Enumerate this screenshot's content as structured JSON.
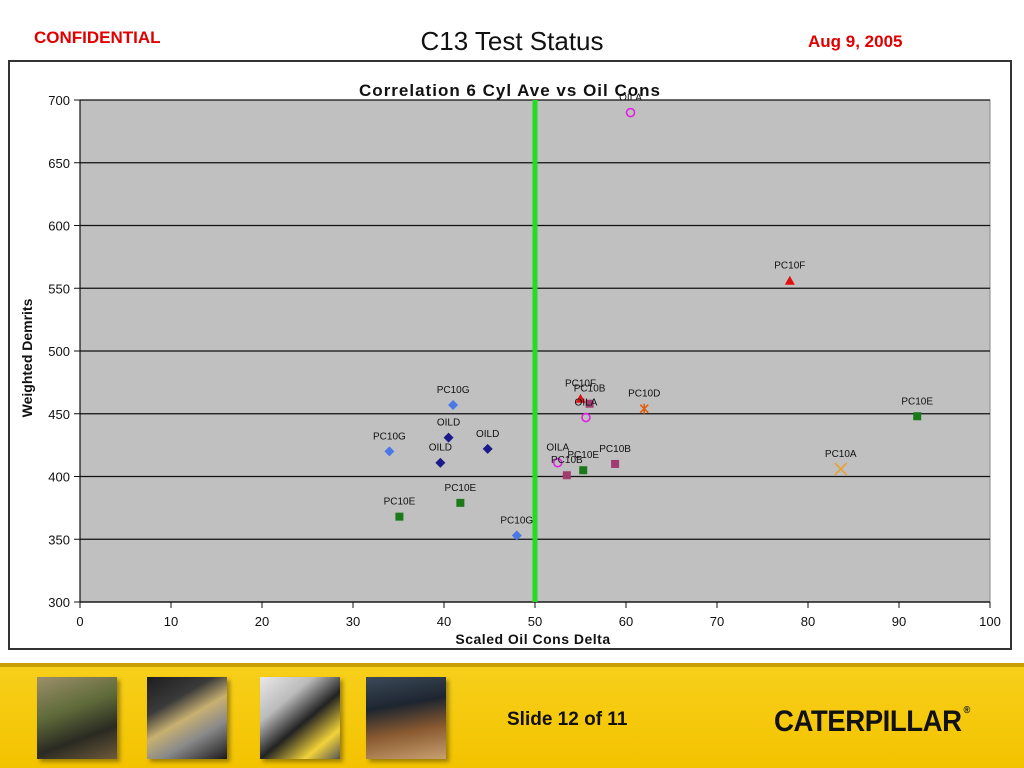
{
  "header": {
    "confidential": "CONFIDENTIAL",
    "title": "C13 Test Status",
    "date": "Aug 9, 2005"
  },
  "footer": {
    "slide_label": "Slide 12 of 11",
    "logo_text": "CATERPILLAR",
    "logo_mark": "®"
  },
  "chart_data": {
    "type": "scatter",
    "title": "Correlation 6 Cyl Ave vs Oil Cons",
    "xlabel": "Scaled  Oil Cons Delta",
    "ylabel": "Weighted Demrits",
    "xlim": [
      0,
      100
    ],
    "ylim": [
      300,
      700
    ],
    "xticks": [
      0,
      10,
      20,
      30,
      40,
      50,
      60,
      70,
      80,
      90,
      100
    ],
    "yticks": [
      300,
      350,
      400,
      450,
      500,
      550,
      600,
      650,
      700
    ],
    "grid": "horizontal",
    "plot_background": "#c0c0c0",
    "reference_line": {
      "x": 50,
      "color": "#22dd22"
    },
    "points": [
      {
        "label": "OILA",
        "x": 60.5,
        "y": 690,
        "marker": "circle",
        "color": "#e020e0"
      },
      {
        "label": "PC10F",
        "x": 78,
        "y": 556,
        "marker": "triangle",
        "color": "#e01010"
      },
      {
        "label": "PC10G",
        "x": 41,
        "y": 457,
        "marker": "diamond",
        "color": "#4a78e8"
      },
      {
        "label": "PC10G",
        "x": 34,
        "y": 420,
        "marker": "diamond",
        "color": "#4a78e8"
      },
      {
        "label": "PC10G",
        "x": 48,
        "y": 353,
        "marker": "diamond",
        "color": "#4a78e8"
      },
      {
        "label": "OILD",
        "x": 40.5,
        "y": 431,
        "marker": "diamond",
        "color": "#1a1a8a"
      },
      {
        "label": "OILD",
        "x": 44.8,
        "y": 422,
        "marker": "diamond",
        "color": "#1a1a8a"
      },
      {
        "label": "OILD",
        "x": 39.6,
        "y": 411,
        "marker": "diamond",
        "color": "#1a1a8a"
      },
      {
        "label": "PC10F",
        "x": 55,
        "y": 462,
        "marker": "triangle",
        "color": "#e01010"
      },
      {
        "label": "PC10B",
        "x": 56,
        "y": 458,
        "marker": "square",
        "color": "#a03c70"
      },
      {
        "label": "OILA",
        "x": 55.6,
        "y": 447,
        "marker": "circle",
        "color": "#e020e0"
      },
      {
        "label": "PC10D",
        "x": 62,
        "y": 454,
        "marker": "star",
        "color": "#e06010"
      },
      {
        "label": "PC10E",
        "x": 92,
        "y": 448,
        "marker": "square",
        "color": "#1a7a1a"
      },
      {
        "label": "PC10A",
        "x": 83.6,
        "y": 406,
        "marker": "x",
        "color": "#e8a030"
      },
      {
        "label": "OILA",
        "x": 52.5,
        "y": 411,
        "marker": "circle",
        "color": "#e020e0"
      },
      {
        "label": "PC10B",
        "x": 53.5,
        "y": 401,
        "marker": "square",
        "color": "#a03c70"
      },
      {
        "label": "PC10E",
        "x": 55.3,
        "y": 405,
        "marker": "square",
        "color": "#1a7a1a"
      },
      {
        "label": "PC10B",
        "x": 58.8,
        "y": 410,
        "marker": "square",
        "color": "#a03c70"
      },
      {
        "label": "PC10E",
        "x": 41.8,
        "y": 379,
        "marker": "square",
        "color": "#1a7a1a"
      },
      {
        "label": "PC10E",
        "x": 35.1,
        "y": 368,
        "marker": "square",
        "color": "#1a7a1a"
      }
    ]
  }
}
